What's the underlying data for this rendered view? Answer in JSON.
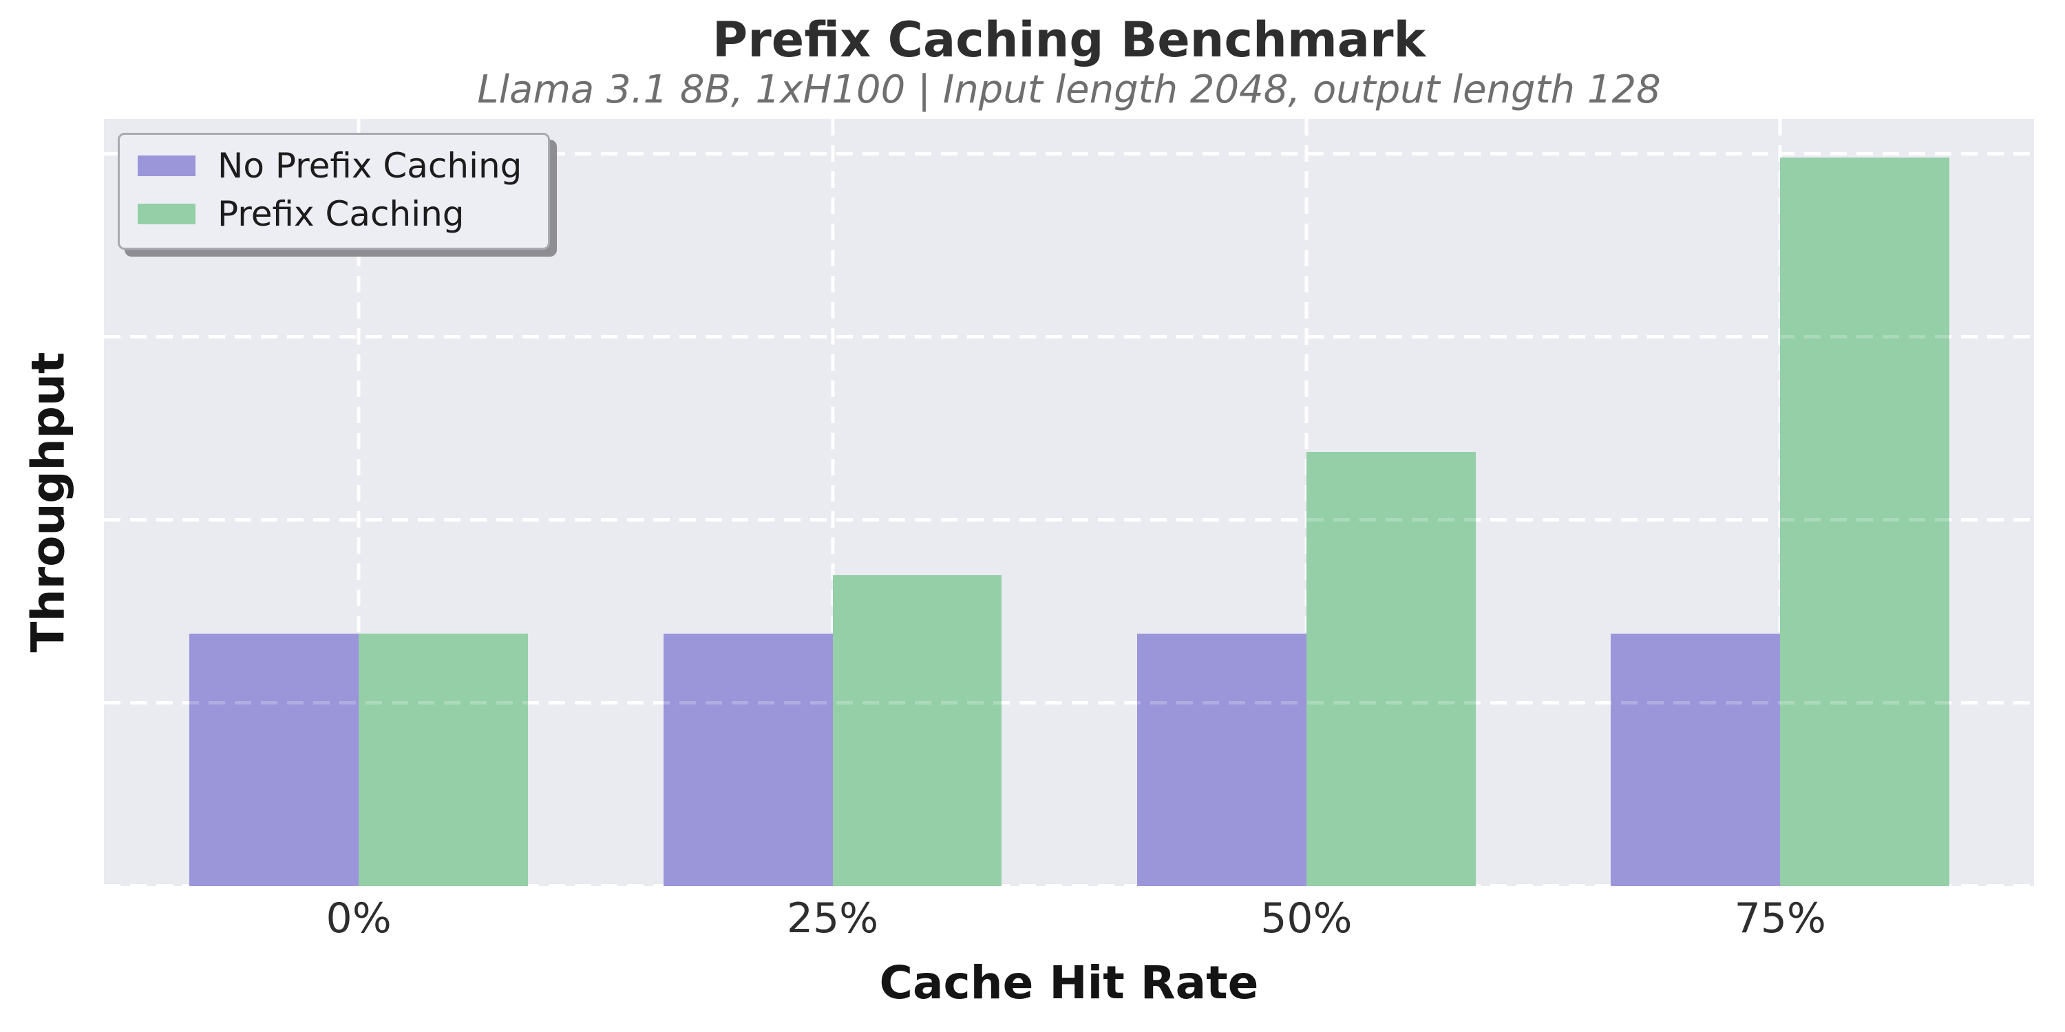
{
  "chart_data": {
    "type": "bar",
    "title": "Prefix Caching Benchmark",
    "subtitle": "Llama 3.1 8B, 1xH100 | Input length 2048, output length 128",
    "xlabel": "Cache Hit Rate",
    "ylabel": "Throughput",
    "categories": [
      "0%",
      "25%",
      "50%",
      "75%"
    ],
    "series": [
      {
        "name": "No Prefix Caching",
        "color": "#9b96da",
        "values": [
          1.38,
          1.38,
          1.38,
          1.38
        ]
      },
      {
        "name": "Prefix Caching",
        "color": "#94cfa8",
        "values": [
          1.38,
          1.7,
          2.37,
          3.98
        ]
      }
    ],
    "ylim": [
      0,
      4.19
    ],
    "y_gridlines": [
      0,
      1,
      2,
      3,
      4
    ],
    "y_tick_labels_visible": false,
    "grid": "dashed-white-on-lavender",
    "legend_position": "upper left",
    "note": "y-axis shows no numeric tick labels; series values are in gridline units read from the plot"
  },
  "colors": {
    "plot_background": "#eaeaf1",
    "figure_background": "#ffffff",
    "gridline": "#ffffff",
    "title_text": "#2e2e2e",
    "subtitle_text": "#6f6f6f",
    "axis_label_text": "#141414",
    "tick_text": "#2e2e2e",
    "legend_background": "#ededf4",
    "legend_border": "#a9a9b1",
    "legend_shadow": "#8d8d92"
  }
}
